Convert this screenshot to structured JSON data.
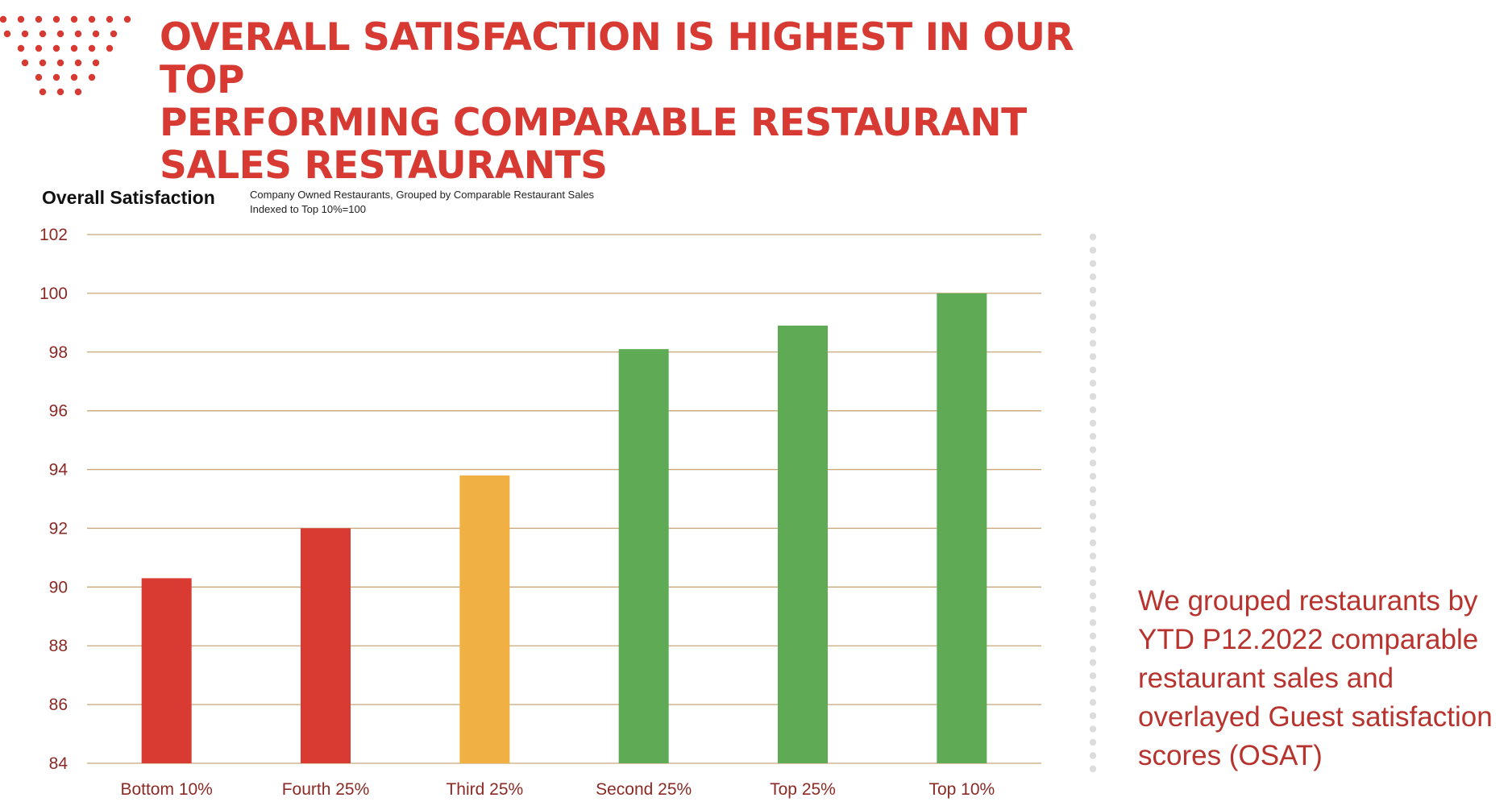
{
  "slide": {
    "title_lines": [
      "OVERALL SATISFACTION IS HIGHEST IN OUR TOP",
      "PERFORMING COMPARABLE RESTAURANT",
      "SALES RESTAURANTS"
    ],
    "side_note": "We grouped restaurants by YTD P12.2022 comparable restaurant sales and overlayed Guest satisfaction scores (OSAT)"
  },
  "chart_data": {
    "type": "bar",
    "title": "Overall Satisfaction",
    "subtitle_lines": [
      "Company Owned Restaurants, Grouped by Comparable Restaurant Sales",
      "Indexed to Top 10%=100"
    ],
    "categories": [
      "Bottom 10%",
      "Fourth 25%",
      "Third 25%",
      "Second 25%",
      "Top 25%",
      "Top 10%"
    ],
    "values": [
      90.3,
      92.0,
      93.8,
      98.1,
      98.9,
      100.0
    ],
    "bar_colors": [
      "#d93b33",
      "#d93b33",
      "#f0b044",
      "#5fab55",
      "#5fab55",
      "#5fab55"
    ],
    "ylim": [
      84,
      102
    ],
    "yticks": [
      84,
      86,
      88,
      90,
      92,
      94,
      96,
      98,
      100,
      102
    ],
    "xlabel": "",
    "ylabel": "",
    "grid": true
  },
  "colors": {
    "accent_red": "#d63a32",
    "gridline": "#c9a77a",
    "tick_label": "#8b2a24"
  }
}
